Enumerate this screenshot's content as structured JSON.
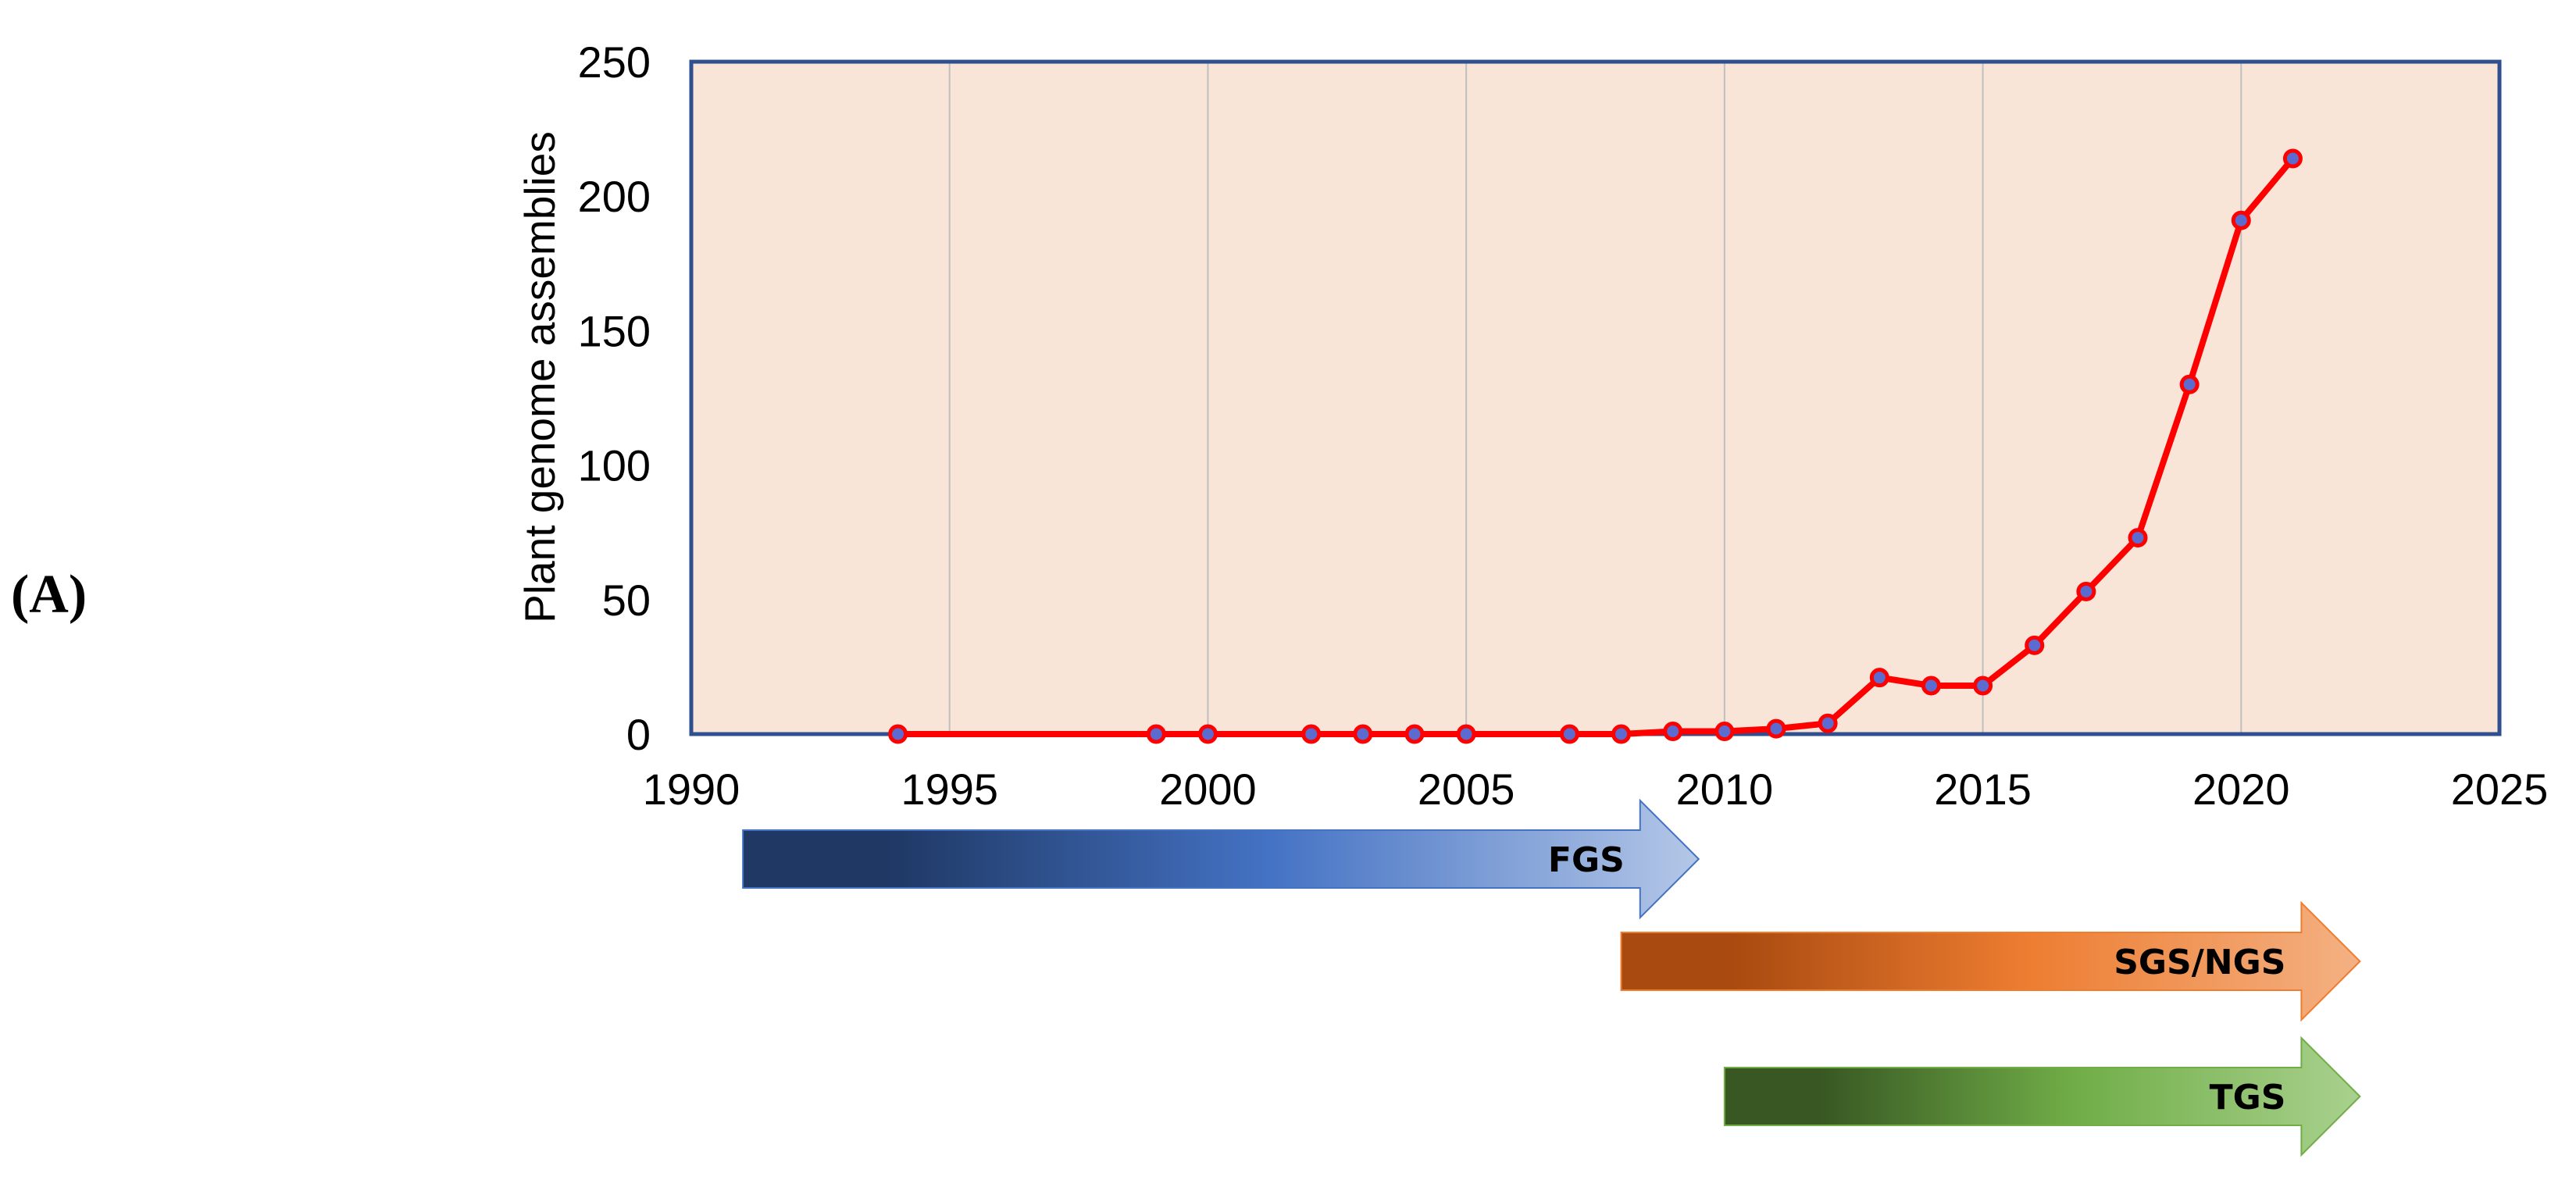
{
  "panel_label": "(A)",
  "chart_data": {
    "type": "line",
    "title": "",
    "xlabel": "",
    "ylabel": "Plant genome assemblies",
    "xlim": [
      1990,
      2025
    ],
    "ylim": [
      0,
      250
    ],
    "xticks": [
      1990,
      1995,
      2000,
      2005,
      2010,
      2015,
      2020,
      2025
    ],
    "yticks": [
      0,
      50,
      100,
      150,
      200,
      250
    ],
    "grid": "vertical",
    "plot_background": "#F9E5D8",
    "axis_color": "#2F4F8F",
    "line_color": "#FF0000",
    "marker_color": "#5B6BD0",
    "series": [
      {
        "x": [
          1994,
          1999,
          2000,
          2002,
          2003,
          2004,
          2005,
          2007,
          2008,
          2009,
          2010,
          2011,
          2012,
          2013,
          2014,
          2015,
          2016,
          2017,
          2018,
          2019,
          2020,
          2021
        ],
        "values": [
          0,
          0,
          0,
          0,
          0,
          0,
          0,
          0,
          0,
          1,
          1,
          2,
          4,
          21,
          18,
          18,
          33,
          53,
          73,
          130,
          191,
          214
        ]
      }
    ],
    "eras": [
      {
        "label": "FGS",
        "start": 1991,
        "end": 2009.5,
        "colors": [
          "#1F3864",
          "#4472C4",
          "#B4C7E7"
        ]
      },
      {
        "label": "SGS/NGS",
        "start": 2008,
        "end": 2022.3,
        "colors": [
          "#A94A10",
          "#ED7D31",
          "#F4B183"
        ]
      },
      {
        "label": "TGS",
        "start": 2010,
        "end": 2022.3,
        "colors": [
          "#385723",
          "#70AD47",
          "#A9D18E"
        ]
      }
    ]
  }
}
